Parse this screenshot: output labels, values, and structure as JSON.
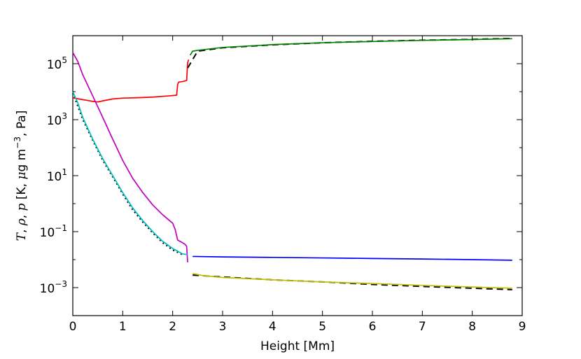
{
  "chart_data": {
    "type": "line",
    "xlabel": "Height [Mm]",
    "ylabel": "T, ρ, p [K, μg m−3, Pa]",
    "ylabel_parts": {
      "T": "T",
      "comma1": ", ",
      "rho": "ρ",
      "comma2": ", ",
      "p": "p",
      "bracket_open": " [K, ",
      "mu": "μ",
      "unit_rest": "g m",
      "sup": "−3",
      "tail": ", Pa]"
    },
    "xlim": [
      0,
      9
    ],
    "ylim": [
      0.0001,
      1000000
    ],
    "yscale": "log",
    "grid": false,
    "xticks": [
      0,
      1,
      2,
      3,
      4,
      5,
      6,
      7,
      8,
      9
    ],
    "yticks": [
      {
        "value": 0.001,
        "base": "10",
        "exp": "-3"
      },
      {
        "value": 0.1,
        "base": "10",
        "exp": "-1"
      },
      {
        "value": 10,
        "base": "10",
        "exp": "1"
      },
      {
        "value": 1000,
        "base": "10",
        "exp": "3"
      },
      {
        "value": 100000,
        "base": "10",
        "exp": "5"
      }
    ],
    "series": [
      {
        "color": "#ff0000",
        "role": "temperature-chromosphere",
        "x": [
          0,
          0.2,
          0.4,
          0.5,
          0.6,
          0.8,
          1.0,
          1.3,
          1.6,
          1.9,
          2.08,
          2.1,
          2.12,
          2.2,
          2.28,
          2.3,
          2.32
        ],
        "y": [
          6000,
          5200,
          4500,
          4300,
          4700,
          5500,
          5900,
          6100,
          6400,
          7000,
          7500,
          18000,
          22000,
          23000,
          25000,
          110000,
          140000
        ]
      },
      {
        "color": "#008000",
        "role": "temperature-corona",
        "x": [
          2.35,
          2.4,
          2.5,
          3.0,
          4.0,
          5.0,
          6.0,
          7.0,
          8.0,
          8.8
        ],
        "y": [
          200000,
          280000,
          300000,
          380000,
          480000,
          560000,
          620000,
          680000,
          730000,
          780000
        ]
      },
      {
        "color": "#bf00bf",
        "role": "pressure-chromosphere",
        "x": [
          0,
          0.1,
          0.2,
          0.4,
          0.6,
          0.8,
          1.0,
          1.2,
          1.4,
          1.6,
          1.8,
          2.0,
          2.05,
          2.1,
          2.2,
          2.25,
          2.28,
          2.3
        ],
        "y": [
          250000,
          120000,
          40000,
          7000,
          1200,
          200,
          35,
          8,
          2.5,
          0.9,
          0.4,
          0.2,
          0.12,
          0.05,
          0.04,
          0.035,
          0.03,
          0.008
        ]
      },
      {
        "color": "#00bfbf",
        "role": "density-chromosphere",
        "x": [
          0,
          0.1,
          0.2,
          0.4,
          0.6,
          0.8,
          1.0,
          1.2,
          1.4,
          1.6,
          1.8,
          2.0,
          2.2,
          2.3
        ],
        "y": [
          10000,
          4000,
          1200,
          200,
          40,
          10,
          2.5,
          0.7,
          0.25,
          0.1,
          0.045,
          0.025,
          0.016,
          0.015
        ]
      },
      {
        "color": "#0000ff",
        "role": "pressure-corona",
        "x": [
          2.4,
          3.0,
          4.0,
          5.0,
          6.0,
          7.0,
          8.0,
          8.8
        ],
        "y": [
          0.013,
          0.0125,
          0.012,
          0.0115,
          0.011,
          0.0105,
          0.01,
          0.0095
        ]
      },
      {
        "color": "#bfbf00",
        "role": "density-corona",
        "x": [
          2.4,
          2.6,
          3.0,
          4.0,
          5.0,
          6.0,
          7.0,
          8.0,
          8.8
        ],
        "y": [
          0.0032,
          0.0027,
          0.0023,
          0.0019,
          0.0016,
          0.0014,
          0.0012,
          0.00105,
          0.00095
        ]
      }
    ],
    "reference_lines": [
      {
        "color": "#000000",
        "dash": "dashed",
        "x": [
          2.4,
          3.0,
          4.0,
          5.0,
          6.0,
          7.0,
          8.0,
          8.8
        ],
        "y": [
          0.0028,
          0.0024,
          0.0019,
          0.0016,
          0.0013,
          0.0011,
          0.00095,
          0.00085
        ]
      },
      {
        "color": "#000000",
        "dash": "dashed",
        "x": [
          2.3,
          2.5,
          3.0,
          4.0,
          5.0,
          6.0,
          7.0,
          8.0,
          8.8
        ],
        "y": [
          70000,
          280000,
          370000,
          470000,
          560000,
          630000,
          690000,
          740000,
          800000
        ]
      },
      {
        "color": "#000000",
        "dash": "dotted",
        "x": [
          0,
          0.2,
          0.4,
          0.6,
          0.8,
          1.0,
          1.2,
          1.4,
          1.6,
          1.8,
          2.0,
          2.2
        ],
        "y": [
          9000,
          1000,
          180,
          35,
          9,
          2.2,
          0.6,
          0.22,
          0.09,
          0.04,
          0.022,
          0.015
        ]
      }
    ]
  }
}
